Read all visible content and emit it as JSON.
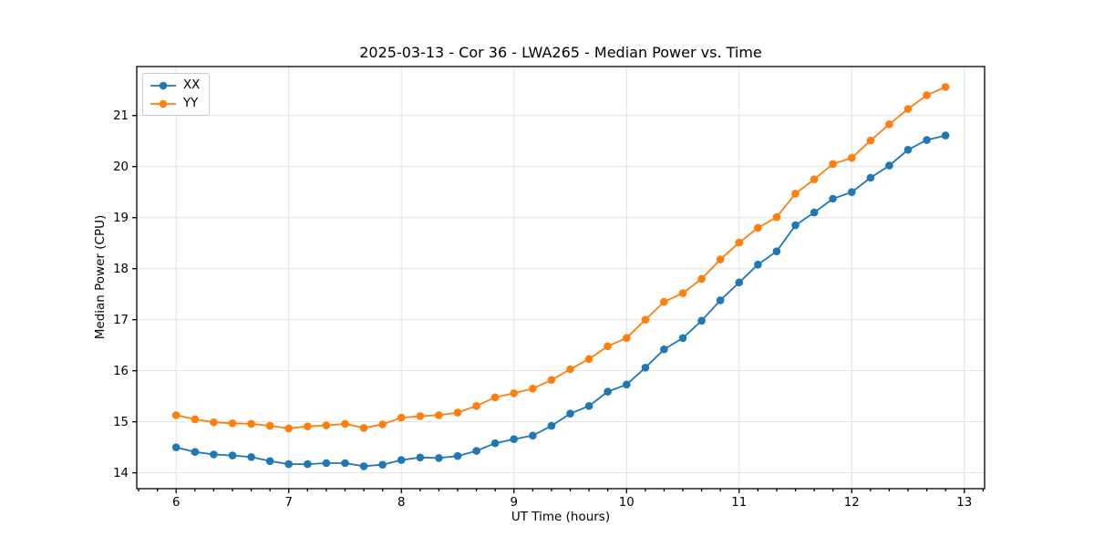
{
  "chart_data": {
    "type": "line",
    "title": "2025-03-13 - Cor 36 - LWA265 - Median Power vs. Time",
    "xlabel": "UT Time (hours)",
    "ylabel": "Median Power (CPU)",
    "xlim": [
      5.65,
      13.18
    ],
    "ylim": [
      13.69,
      21.96
    ],
    "xticks": [
      6,
      7,
      8,
      9,
      10,
      11,
      12,
      13
    ],
    "yticks": [
      14,
      15,
      16,
      17,
      18,
      19,
      20,
      21
    ],
    "x_minor_step": 0.166667,
    "grid": true,
    "legend_position": "upper-left",
    "marker": "circle",
    "x": [
      6.0,
      6.167,
      6.333,
      6.5,
      6.667,
      6.833,
      7.0,
      7.167,
      7.333,
      7.5,
      7.667,
      7.833,
      8.0,
      8.167,
      8.333,
      8.5,
      8.667,
      8.833,
      9.0,
      9.167,
      9.333,
      9.5,
      9.667,
      9.833,
      10.0,
      10.167,
      10.333,
      10.5,
      10.667,
      10.833,
      11.0,
      11.167,
      11.333,
      11.5,
      11.667,
      11.833,
      12.0,
      12.167,
      12.333,
      12.5,
      12.667,
      12.833
    ],
    "series": [
      {
        "name": "XX",
        "color": "#1f77b4",
        "values": [
          14.5,
          14.41,
          14.36,
          14.34,
          14.31,
          14.23,
          14.17,
          14.17,
          14.19,
          14.19,
          14.13,
          14.16,
          14.25,
          14.3,
          14.29,
          14.33,
          14.43,
          14.58,
          14.66,
          14.73,
          14.92,
          15.16,
          15.31,
          15.59,
          15.73,
          16.06,
          16.42,
          16.64,
          16.98,
          17.38,
          17.73,
          18.08,
          18.34,
          18.85,
          19.1,
          19.37,
          19.5,
          19.78,
          20.02,
          20.33,
          20.52,
          20.61
        ]
      },
      {
        "name": "YY",
        "color": "#ff7f0e",
        "values": [
          15.13,
          15.05,
          14.99,
          14.97,
          14.96,
          14.92,
          14.87,
          14.91,
          14.93,
          14.96,
          14.88,
          14.95,
          15.08,
          15.11,
          15.13,
          15.18,
          15.31,
          15.48,
          15.56,
          15.65,
          15.82,
          16.03,
          16.23,
          16.48,
          16.64,
          17.0,
          17.35,
          17.52,
          17.8,
          18.18,
          18.51,
          18.8,
          19.01,
          19.47,
          19.75,
          20.05,
          20.17,
          20.51,
          20.83,
          21.13,
          21.4,
          21.56
        ]
      }
    ]
  }
}
